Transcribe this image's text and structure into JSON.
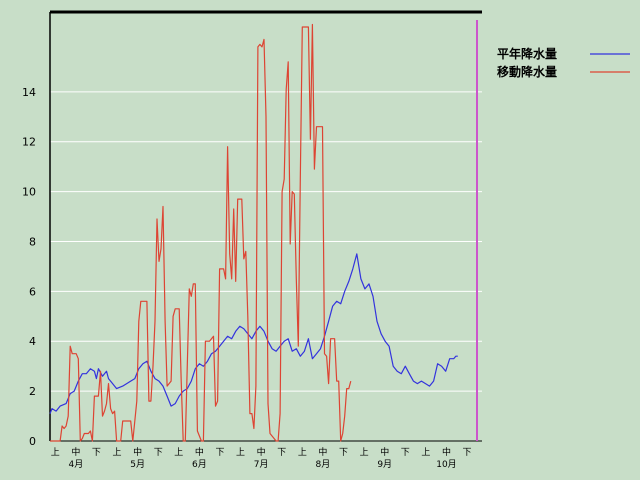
{
  "chart_data": {
    "type": "line",
    "title": "",
    "xlabel": "",
    "ylabel": "",
    "ylim": [
      0,
      17.2
    ],
    "y_ticks": [
      0,
      2,
      4,
      6,
      8,
      10,
      12,
      14
    ],
    "grid": "horizontal",
    "legend_position": "top-right",
    "x_period_labels": [
      "上",
      "中",
      "下",
      "上",
      "中",
      "下",
      "上",
      "中",
      "下",
      "上",
      "中",
      "下",
      "上",
      "中",
      "下",
      "上",
      "中",
      "下",
      "上",
      "中",
      "下"
    ],
    "x_month_labels": [
      "4月",
      "5月",
      "6月",
      "7月",
      "8月",
      "9月",
      "10月"
    ],
    "days": 214,
    "series": [
      {
        "name": "平年降水量",
        "color": "#3333dd",
        "points": [
          [
            0,
            1.1
          ],
          [
            1,
            1.3
          ],
          [
            3,
            1.2
          ],
          [
            5,
            1.4
          ],
          [
            8,
            1.5
          ],
          [
            10,
            1.9
          ],
          [
            12,
            2.0
          ],
          [
            14,
            2.4
          ],
          [
            16,
            2.7
          ],
          [
            18,
            2.7
          ],
          [
            20,
            2.9
          ],
          [
            22,
            2.8
          ],
          [
            23,
            2.5
          ],
          [
            24,
            2.9
          ],
          [
            26,
            2.6
          ],
          [
            28,
            2.8
          ],
          [
            29,
            2.5
          ],
          [
            31,
            2.3
          ],
          [
            33,
            2.1
          ],
          [
            36,
            2.2
          ],
          [
            38,
            2.3
          ],
          [
            40,
            2.4
          ],
          [
            42,
            2.5
          ],
          [
            44,
            2.9
          ],
          [
            46,
            3.1
          ],
          [
            48,
            3.2
          ],
          [
            50,
            2.8
          ],
          [
            52,
            2.5
          ],
          [
            54,
            2.4
          ],
          [
            56,
            2.2
          ],
          [
            58,
            1.8
          ],
          [
            60,
            1.4
          ],
          [
            62,
            1.5
          ],
          [
            64,
            1.8
          ],
          [
            66,
            2.0
          ],
          [
            68,
            2.1
          ],
          [
            70,
            2.4
          ],
          [
            72,
            2.9
          ],
          [
            74,
            3.1
          ],
          [
            76,
            3.0
          ],
          [
            78,
            3.2
          ],
          [
            80,
            3.5
          ],
          [
            82,
            3.6
          ],
          [
            84,
            3.8
          ],
          [
            86,
            4.0
          ],
          [
            88,
            4.2
          ],
          [
            90,
            4.1
          ],
          [
            92,
            4.4
          ],
          [
            94,
            4.6
          ],
          [
            96,
            4.5
          ],
          [
            98,
            4.3
          ],
          [
            100,
            4.1
          ],
          [
            102,
            4.4
          ],
          [
            104,
            4.6
          ],
          [
            106,
            4.4
          ],
          [
            108,
            4.0
          ],
          [
            110,
            3.7
          ],
          [
            112,
            3.6
          ],
          [
            114,
            3.8
          ],
          [
            116,
            4.0
          ],
          [
            118,
            4.1
          ],
          [
            120,
            3.6
          ],
          [
            122,
            3.7
          ],
          [
            124,
            3.4
          ],
          [
            126,
            3.6
          ],
          [
            128,
            4.1
          ],
          [
            130,
            3.3
          ],
          [
            132,
            3.5
          ],
          [
            134,
            3.7
          ],
          [
            136,
            4.2
          ],
          [
            138,
            4.8
          ],
          [
            140,
            5.4
          ],
          [
            142,
            5.6
          ],
          [
            144,
            5.5
          ],
          [
            146,
            6.0
          ],
          [
            148,
            6.4
          ],
          [
            150,
            6.9
          ],
          [
            152,
            7.5
          ],
          [
            154,
            6.5
          ],
          [
            156,
            6.1
          ],
          [
            158,
            6.3
          ],
          [
            160,
            5.8
          ],
          [
            162,
            4.8
          ],
          [
            164,
            4.3
          ],
          [
            166,
            4.0
          ],
          [
            168,
            3.8
          ],
          [
            170,
            3.0
          ],
          [
            172,
            2.8
          ],
          [
            174,
            2.7
          ],
          [
            176,
            3.0
          ],
          [
            178,
            2.7
          ],
          [
            180,
            2.4
          ],
          [
            182,
            2.3
          ],
          [
            184,
            2.4
          ],
          [
            186,
            2.3
          ],
          [
            188,
            2.2
          ],
          [
            190,
            2.4
          ],
          [
            192,
            3.1
          ],
          [
            194,
            3.0
          ],
          [
            196,
            2.8
          ],
          [
            198,
            3.3
          ],
          [
            200,
            3.3
          ],
          [
            201,
            3.4
          ],
          [
            202,
            3.4
          ]
        ]
      },
      {
        "name": "移動降水量",
        "color": "#dd4433",
        "points": [
          [
            0,
            0
          ],
          [
            5,
            0
          ],
          [
            6,
            0.6
          ],
          [
            7,
            0.5
          ],
          [
            8,
            0.6
          ],
          [
            9,
            1.0
          ],
          [
            10,
            3.8
          ],
          [
            11,
            3.5
          ],
          [
            13,
            3.5
          ],
          [
            14,
            3.3
          ],
          [
            15,
            0
          ],
          [
            16,
            0.1
          ],
          [
            17,
            0.3
          ],
          [
            19,
            0.3
          ],
          [
            20,
            0.4
          ],
          [
            21,
            0
          ],
          [
            22,
            1.8
          ],
          [
            24,
            1.8
          ],
          [
            25,
            2.8
          ],
          [
            26,
            1.0
          ],
          [
            27,
            1.2
          ],
          [
            28,
            1.5
          ],
          [
            29,
            2.3
          ],
          [
            30,
            1.3
          ],
          [
            31,
            1.1
          ],
          [
            32,
            1.2
          ],
          [
            33,
            0
          ],
          [
            35,
            0
          ],
          [
            36,
            0.8
          ],
          [
            38,
            0.8
          ],
          [
            40,
            0.8
          ],
          [
            41,
            0
          ],
          [
            43,
            1.6
          ],
          [
            44,
            4.8
          ],
          [
            45,
            5.6
          ],
          [
            48,
            5.6
          ],
          [
            49,
            1.6
          ],
          [
            50,
            1.6
          ],
          [
            51,
            3.0
          ],
          [
            52,
            4.8
          ],
          [
            53,
            8.9
          ],
          [
            54,
            7.2
          ],
          [
            55,
            7.7
          ],
          [
            56,
            9.4
          ],
          [
            57,
            4.8
          ],
          [
            58,
            2.2
          ],
          [
            60,
            2.4
          ],
          [
            61,
            5.0
          ],
          [
            62,
            5.3
          ],
          [
            64,
            5.3
          ],
          [
            65,
            2.4
          ],
          [
            66,
            0
          ],
          [
            67,
            0
          ],
          [
            69,
            6.1
          ],
          [
            70,
            5.8
          ],
          [
            71,
            6.3
          ],
          [
            72,
            6.3
          ],
          [
            73,
            0.4
          ],
          [
            74,
            0.2
          ],
          [
            75,
            0
          ],
          [
            76,
            0
          ],
          [
            77,
            4.0
          ],
          [
            79,
            4.0
          ],
          [
            81,
            4.2
          ],
          [
            82,
            1.4
          ],
          [
            83,
            1.6
          ],
          [
            84,
            6.9
          ],
          [
            86,
            6.9
          ],
          [
            87,
            6.5
          ],
          [
            88,
            11.8
          ],
          [
            89,
            7.5
          ],
          [
            90,
            6.5
          ],
          [
            91,
            9.3
          ],
          [
            92,
            6.4
          ],
          [
            93,
            9.7
          ],
          [
            94,
            9.7
          ],
          [
            95,
            9.7
          ],
          [
            96,
            7.3
          ],
          [
            97,
            7.6
          ],
          [
            98,
            5.0
          ],
          [
            99,
            1.1
          ],
          [
            100,
            1.1
          ],
          [
            101,
            0.5
          ],
          [
            102,
            2.2
          ],
          [
            103,
            15.8
          ],
          [
            104,
            15.9
          ],
          [
            105,
            15.8
          ],
          [
            106,
            16.1
          ],
          [
            107,
            13.0
          ],
          [
            108,
            1.5
          ],
          [
            109,
            0.3
          ],
          [
            111,
            0.1
          ],
          [
            112,
            0
          ],
          [
            113,
            0
          ],
          [
            114,
            1.1
          ],
          [
            115,
            10.0
          ],
          [
            116,
            10.5
          ],
          [
            117,
            14.1
          ],
          [
            118,
            15.2
          ],
          [
            119,
            7.9
          ],
          [
            120,
            10.0
          ],
          [
            121,
            9.9
          ],
          [
            122,
            6.5
          ],
          [
            123,
            3.8
          ],
          [
            124,
            10.5
          ],
          [
            125,
            16.6
          ],
          [
            128,
            16.6
          ],
          [
            129,
            12.1
          ],
          [
            130,
            16.7
          ],
          [
            131,
            10.9
          ],
          [
            132,
            12.6
          ],
          [
            135,
            12.6
          ],
          [
            136,
            3.5
          ],
          [
            137,
            3.4
          ],
          [
            138,
            2.3
          ],
          [
            139,
            4.1
          ],
          [
            141,
            4.1
          ],
          [
            142,
            2.4
          ],
          [
            143,
            2.4
          ],
          [
            144,
            0
          ],
          [
            145,
            0.3
          ],
          [
            146,
            1.0
          ],
          [
            147,
            2.1
          ],
          [
            148,
            2.1
          ],
          [
            149,
            2.4
          ]
        ]
      }
    ]
  }
}
